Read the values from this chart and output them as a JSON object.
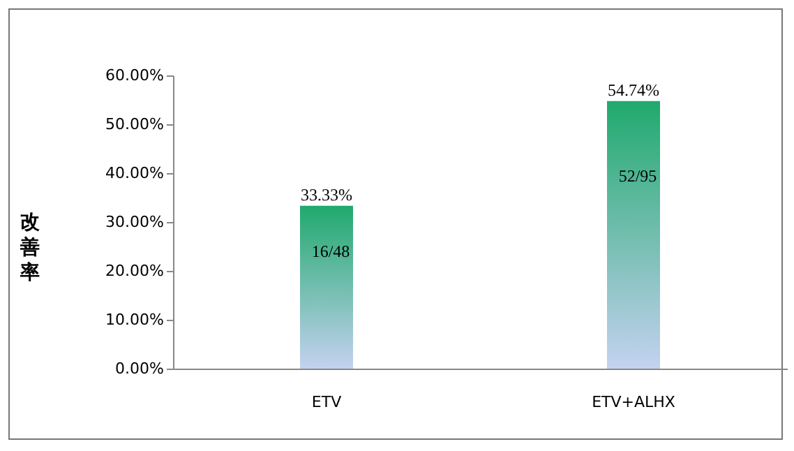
{
  "chart_data": {
    "type": "bar",
    "ylabel": "改善率",
    "categories": [
      "ETV",
      "ETV+ALHX"
    ],
    "values": [
      33.33,
      54.74
    ],
    "color": "#20a96d",
    "value_labels": [
      "33.33%",
      "54.74%"
    ],
    "annotations": [
      "16/48",
      "52/95"
    ],
    "ylim": [
      0,
      60
    ],
    "yticks": [
      {
        "value": 0,
        "label": "0.00%"
      },
      {
        "value": 10,
        "label": "10.00%"
      },
      {
        "value": 20,
        "label": "20.00%"
      },
      {
        "value": 30,
        "label": "30.00%"
      },
      {
        "value": 40,
        "label": "40.00%"
      },
      {
        "value": 50,
        "label": "50.00%"
      },
      {
        "value": 60,
        "label": "60.00%"
      }
    ],
    "grid": false
  }
}
